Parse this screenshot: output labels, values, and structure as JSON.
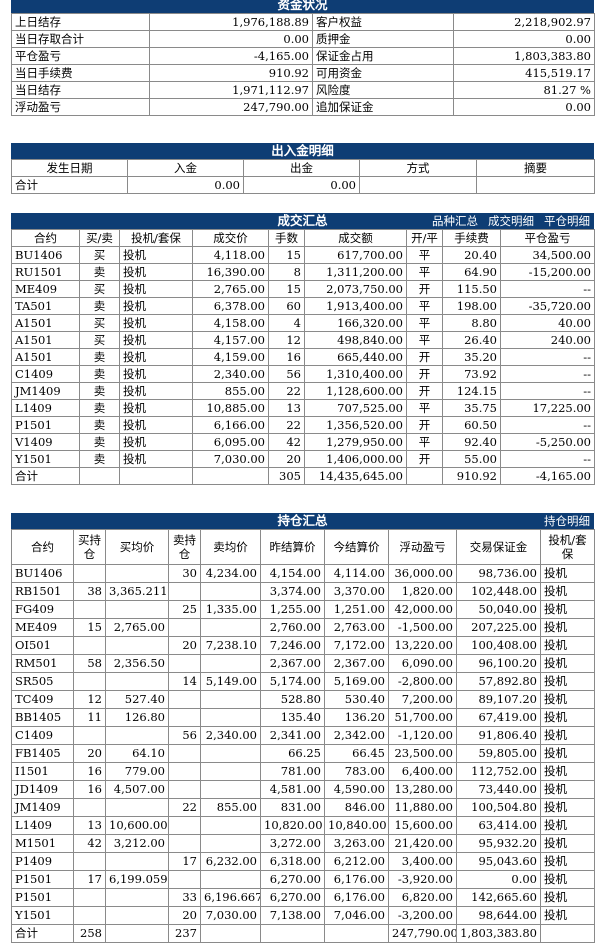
{
  "funds": {
    "title": "资金状况",
    "rows": [
      [
        "上日结存",
        "1,976,188.89",
        "客户权益",
        "2,218,902.97"
      ],
      [
        "当日存取合计",
        "0.00",
        "质押金",
        "0.00"
      ],
      [
        "平仓盈亏",
        "-4,165.00",
        "保证金占用",
        "1,803,383.80"
      ],
      [
        "当日手续费",
        "910.92",
        "可用资金",
        "415,519.17"
      ],
      [
        "当日结存",
        "1,971,112.97",
        "风险度",
        "81.27 %"
      ],
      [
        "浮动盈亏",
        "247,790.00",
        "追加保证金",
        "0.00"
      ]
    ]
  },
  "cashflow": {
    "title": "出入金明细",
    "headers": [
      "发生日期",
      "入金",
      "出金",
      "方式",
      "摘要"
    ],
    "total": [
      "合计",
      "0.00",
      "0.00",
      "",
      ""
    ]
  },
  "trades": {
    "title": "成交汇总",
    "links": [
      "品种汇总",
      "成交明细",
      "平仓明细"
    ],
    "headers": [
      "合约",
      "买/卖",
      "投机/套保",
      "成交价",
      "手数",
      "成交额",
      "开/平",
      "手续费",
      "平仓盈亏"
    ],
    "rows": [
      [
        "BU1406",
        "买",
        "投机",
        "4,118.00",
        "15",
        "617,700.00",
        "平",
        "20.40",
        "34,500.00"
      ],
      [
        "RU1501",
        "卖",
        "投机",
        "16,390.00",
        "8",
        "1,311,200.00",
        "平",
        "64.90",
        "-15,200.00"
      ],
      [
        "ME409",
        "买",
        "投机",
        "2,765.00",
        "15",
        "2,073,750.00",
        "开",
        "115.50",
        "--"
      ],
      [
        "TA501",
        "卖",
        "投机",
        "6,378.00",
        "60",
        "1,913,400.00",
        "平",
        "198.00",
        "-35,720.00"
      ],
      [
        "A1501",
        "买",
        "投机",
        "4,158.00",
        "4",
        "166,320.00",
        "平",
        "8.80",
        "40.00"
      ],
      [
        "A1501",
        "买",
        "投机",
        "4,157.00",
        "12",
        "498,840.00",
        "平",
        "26.40",
        "240.00"
      ],
      [
        "A1501",
        "卖",
        "投机",
        "4,159.00",
        "16",
        "665,440.00",
        "开",
        "35.20",
        "--"
      ],
      [
        "C1409",
        "卖",
        "投机",
        "2,340.00",
        "56",
        "1,310,400.00",
        "开",
        "73.92",
        "--"
      ],
      [
        "JM1409",
        "卖",
        "投机",
        "855.00",
        "22",
        "1,128,600.00",
        "开",
        "124.15",
        "--"
      ],
      [
        "L1409",
        "卖",
        "投机",
        "10,885.00",
        "13",
        "707,525.00",
        "平",
        "35.75",
        "17,225.00"
      ],
      [
        "P1501",
        "卖",
        "投机",
        "6,166.00",
        "22",
        "1,356,520.00",
        "开",
        "60.50",
        "--"
      ],
      [
        "V1409",
        "卖",
        "投机",
        "6,095.00",
        "42",
        "1,279,950.00",
        "平",
        "92.40",
        "-5,250.00"
      ],
      [
        "Y1501",
        "卖",
        "投机",
        "7,030.00",
        "20",
        "1,406,000.00",
        "开",
        "55.00",
        "--"
      ]
    ],
    "total": [
      "合计",
      "",
      "",
      "",
      "305",
      "14,435,645.00",
      "",
      "910.92",
      "-4,165.00"
    ]
  },
  "positions": {
    "title": "持仓汇总",
    "links": [
      "持仓明细"
    ],
    "headers": [
      "合约",
      "买持仓",
      "买均价",
      "卖持仓",
      "卖均价",
      "昨结算价",
      "今结算价",
      "浮动盈亏",
      "交易保证金",
      "投机/套保"
    ],
    "rows": [
      [
        "BU1406",
        "",
        "",
        "30",
        "4,234.00",
        "4,154.00",
        "4,114.00",
        "36,000.00",
        "98,736.00",
        "投机"
      ],
      [
        "RB1501",
        "38",
        "3,365.211",
        "",
        "",
        "3,374.00",
        "3,370.00",
        "1,820.00",
        "102,448.00",
        "投机"
      ],
      [
        "FG409",
        "",
        "",
        "25",
        "1,335.00",
        "1,255.00",
        "1,251.00",
        "42,000.00",
        "50,040.00",
        "投机"
      ],
      [
        "ME409",
        "15",
        "2,765.00",
        "",
        "",
        "2,760.00",
        "2,763.00",
        "-1,500.00",
        "207,225.00",
        "投机"
      ],
      [
        "OI501",
        "",
        "",
        "20",
        "7,238.10",
        "7,246.00",
        "7,172.00",
        "13,220.00",
        "100,408.00",
        "投机"
      ],
      [
        "RM501",
        "58",
        "2,356.50",
        "",
        "",
        "2,367.00",
        "2,367.00",
        "6,090.00",
        "96,100.20",
        "投机"
      ],
      [
        "SR505",
        "",
        "",
        "14",
        "5,149.00",
        "5,174.00",
        "5,169.00",
        "-2,800.00",
        "57,892.80",
        "投机"
      ],
      [
        "TC409",
        "12",
        "527.40",
        "",
        "",
        "528.80",
        "530.40",
        "7,200.00",
        "89,107.20",
        "投机"
      ],
      [
        "BB1405",
        "11",
        "126.80",
        "",
        "",
        "135.40",
        "136.20",
        "51,700.00",
        "67,419.00",
        "投机"
      ],
      [
        "C1409",
        "",
        "",
        "56",
        "2,340.00",
        "2,341.00",
        "2,342.00",
        "-1,120.00",
        "91,806.40",
        "投机"
      ],
      [
        "FB1405",
        "20",
        "64.10",
        "",
        "",
        "66.25",
        "66.45",
        "23,500.00",
        "59,805.00",
        "投机"
      ],
      [
        "I1501",
        "16",
        "779.00",
        "",
        "",
        "781.00",
        "783.00",
        "6,400.00",
        "112,752.00",
        "投机"
      ],
      [
        "JD1409",
        "16",
        "4,507.00",
        "",
        "",
        "4,581.00",
        "4,590.00",
        "13,280.00",
        "73,440.00",
        "投机"
      ],
      [
        "JM1409",
        "",
        "",
        "22",
        "855.00",
        "831.00",
        "846.00",
        "11,880.00",
        "100,504.80",
        "投机"
      ],
      [
        "L1409",
        "13",
        "10,600.00",
        "",
        "",
        "10,820.00",
        "10,840.00",
        "15,600.00",
        "63,414.00",
        "投机"
      ],
      [
        "M1501",
        "42",
        "3,212.00",
        "",
        "",
        "3,272.00",
        "3,263.00",
        "21,420.00",
        "95,932.20",
        "投机"
      ],
      [
        "P1409",
        "",
        "",
        "17",
        "6,232.00",
        "6,318.00",
        "6,212.00",
        "3,400.00",
        "95,043.60",
        "投机"
      ],
      [
        "P1501",
        "17",
        "6,199.059",
        "",
        "",
        "6,270.00",
        "6,176.00",
        "-3,920.00",
        "0.00",
        "投机"
      ],
      [
        "P1501",
        "",
        "",
        "33",
        "6,196.667",
        "6,270.00",
        "6,176.00",
        "6,820.00",
        "142,665.60",
        "投机"
      ],
      [
        "Y1501",
        "",
        "",
        "20",
        "7,030.00",
        "7,138.00",
        "7,046.00",
        "-3,200.00",
        "98,644.00",
        "投机"
      ]
    ],
    "total": [
      "合计",
      "258",
      "",
      "237",
      "",
      "",
      "",
      "247,790.00",
      "1,803,383.80",
      ""
    ]
  }
}
